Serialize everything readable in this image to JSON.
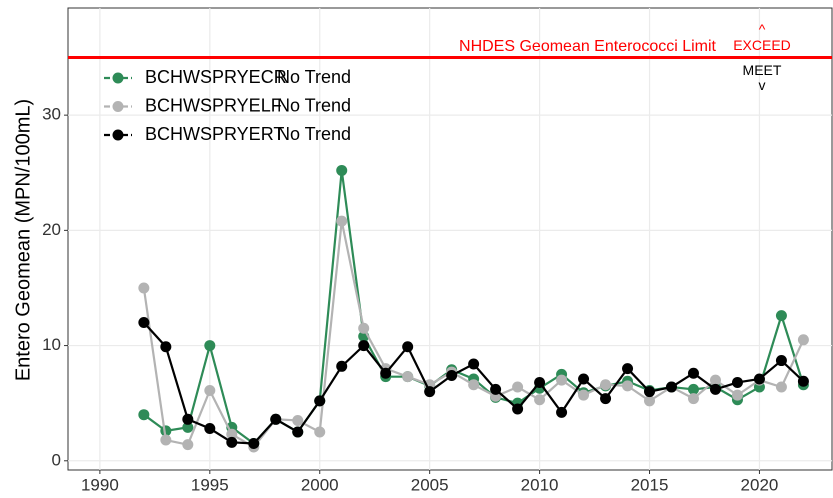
{
  "chart_data": {
    "type": "line",
    "y_label": "Entero Geomean (MPN/100mL)",
    "x": [
      1992,
      1993,
      1994,
      1995,
      1996,
      1997,
      1998,
      1999,
      2000,
      2001,
      2002,
      2003,
      2004,
      2005,
      2006,
      2007,
      2008,
      2009,
      2010,
      2011,
      2012,
      2013,
      2014,
      2015,
      2016,
      2017,
      2018,
      2019,
      2020,
      2021,
      2022
    ],
    "series": [
      {
        "name": "BCHWSPRYECR",
        "trend": "No Trend",
        "color": "#2e8b57",
        "values": [
          4.0,
          2.6,
          2.9,
          10.0,
          2.9,
          1.5,
          3.6,
          2.5,
          5.2,
          25.2,
          10.8,
          7.3,
          7.3,
          6.5,
          7.9,
          7.1,
          5.5,
          5.0,
          6.3,
          7.5,
          5.9,
          6.5,
          6.9,
          6.1,
          6.4,
          6.2,
          6.4,
          5.3,
          6.4,
          12.6,
          6.6
        ]
      },
      {
        "name": "BCHWSPRYELF",
        "trend": "No Trend",
        "color": "#b3b3b3",
        "values": [
          15.0,
          1.8,
          1.4,
          6.1,
          2.3,
          1.2,
          3.6,
          3.5,
          2.5,
          20.8,
          11.5,
          8.0,
          7.3,
          6.6,
          7.7,
          6.6,
          5.6,
          6.4,
          5.3,
          7.0,
          5.7,
          6.6,
          6.5,
          5.2,
          6.4,
          5.4,
          7.0,
          5.7,
          7.0,
          6.4,
          10.5
        ]
      },
      {
        "name": "BCHWSPRYERT",
        "trend": "No Trend",
        "color": "#000000",
        "values": [
          12.0,
          9.9,
          3.6,
          2.8,
          1.6,
          1.5,
          3.6,
          2.5,
          5.2,
          8.2,
          10.0,
          7.6,
          9.9,
          6.0,
          7.4,
          8.4,
          6.2,
          4.5,
          6.8,
          4.2,
          7.1,
          5.4,
          8.0,
          6.0,
          6.4,
          7.6,
          6.2,
          6.8,
          7.1,
          8.7,
          6.9
        ]
      }
    ],
    "threshold": {
      "value": 35,
      "color": "#ff0000",
      "label": "NHDES Geomean Enterococci Limit",
      "above": {
        "arrow": "^",
        "label": "EXCEED"
      },
      "below": {
        "label": "MEET",
        "arrow": "v"
      }
    },
    "xlim": [
      1988.55,
      2023.3
    ],
    "xticks": [
      1990,
      1995,
      2000,
      2005,
      2010,
      2015,
      2020
    ],
    "ylim": [
      -0.8,
      39.3
    ],
    "yticks": [
      0,
      10,
      20,
      30
    ],
    "grid": true,
    "legend": "top-left"
  }
}
